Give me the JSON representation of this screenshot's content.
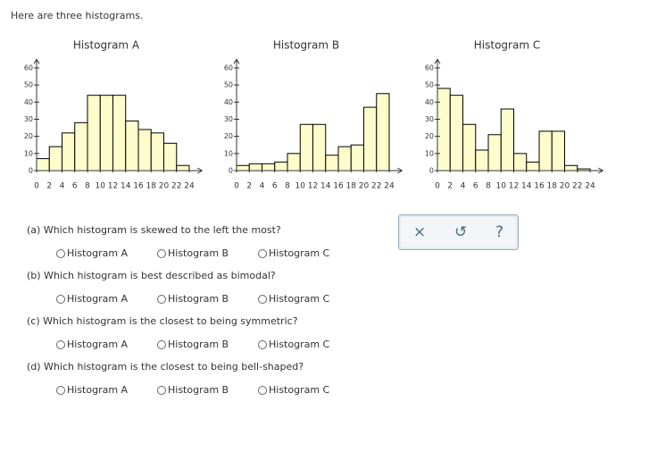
{
  "intro": "Here are three histograms.",
  "chart_data": [
    {
      "type": "histogram",
      "title": "Histogram A",
      "bins": [
        0,
        2,
        4,
        6,
        8,
        10,
        12,
        14,
        16,
        18,
        20,
        22,
        24
      ],
      "values": [
        7,
        14,
        22,
        28,
        44,
        44,
        44,
        29,
        24,
        22,
        16,
        3
      ],
      "color": "#fffccc",
      "xlim": [
        0,
        26
      ],
      "ylim": [
        0,
        65
      ],
      "xticks": [
        0,
        2,
        4,
        6,
        8,
        10,
        12,
        14,
        16,
        18,
        20,
        22,
        24
      ],
      "yticks": [
        0,
        10,
        20,
        30,
        40,
        50,
        60
      ]
    },
    {
      "type": "histogram",
      "title": "Histogram B",
      "bins": [
        0,
        2,
        4,
        6,
        8,
        10,
        12,
        14,
        16,
        18,
        20,
        22,
        24
      ],
      "values": [
        3,
        4,
        4,
        5,
        10,
        27,
        27,
        9,
        14,
        15,
        37,
        45
      ],
      "color": "#fffccc",
      "xlim": [
        0,
        26
      ],
      "ylim": [
        0,
        65
      ],
      "xticks": [
        0,
        2,
        4,
        6,
        8,
        10,
        12,
        14,
        16,
        18,
        20,
        22,
        24
      ],
      "yticks": [
        0,
        10,
        20,
        30,
        40,
        50,
        60
      ]
    },
    {
      "type": "histogram",
      "title": "Histogram C",
      "bins": [
        0,
        2,
        4,
        6,
        8,
        10,
        12,
        14,
        16,
        18,
        20,
        22,
        24
      ],
      "values": [
        48,
        44,
        27,
        12,
        21,
        36,
        10,
        5,
        23,
        23,
        3,
        1
      ],
      "color": "#fffccc",
      "xlim": [
        0,
        26
      ],
      "ylim": [
        0,
        65
      ],
      "xticks": [
        0,
        2,
        4,
        6,
        8,
        10,
        12,
        14,
        16,
        18,
        20,
        22,
        24
      ],
      "yticks": [
        0,
        10,
        20,
        30,
        40,
        50,
        60
      ]
    }
  ],
  "questions": [
    {
      "text": "(a) Which histogram is skewed to the left the most?",
      "options": [
        "Histogram A",
        "Histogram B",
        "Histogram C"
      ]
    },
    {
      "text": "(b) Which histogram is best described as bimodal?",
      "options": [
        "Histogram A",
        "Histogram B",
        "Histogram C"
      ]
    },
    {
      "text": "(c) Which histogram is the closest to being symmetric?",
      "options": [
        "Histogram A",
        "Histogram B",
        "Histogram C"
      ]
    },
    {
      "text": "(d) Which histogram is the closest to being bell-shaped?",
      "options": [
        "Histogram A",
        "Histogram B",
        "Histogram C"
      ]
    }
  ],
  "toolbar": [
    "×",
    "↺",
    "?"
  ]
}
